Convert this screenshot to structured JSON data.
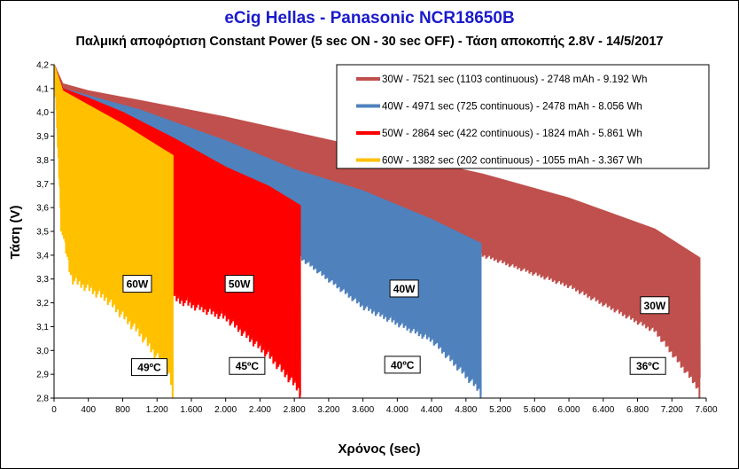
{
  "chart_data": {
    "type": "area",
    "title": "eCig Hellas  - Panasonic NCR18650B",
    "subtitle": "Παλμική αποφόρτιση Constant Power (5 sec ON - 30 sec OFF) - Τάση αποκοπής 2.8V - 14/5/2017",
    "xlabel": "Χρόνος (sec)",
    "ylabel": "Τάση (V)",
    "xlim": [
      0,
      7600
    ],
    "ylim": [
      2.8,
      4.2
    ],
    "x_ticks": [
      "0",
      "400",
      "800",
      "1.200",
      "1.600",
      "2.000",
      "2.400",
      "2.800",
      "3.200",
      "3.600",
      "4.000",
      "4.400",
      "4.800",
      "5.200",
      "5.600",
      "6.000",
      "6.400",
      "6.800",
      "7.200",
      "7.600"
    ],
    "y_ticks": [
      "2,8",
      "2,9",
      "3,0",
      "3,1",
      "3,2",
      "3,3",
      "3,4",
      "3,5",
      "3,6",
      "3,7",
      "3,8",
      "3,9",
      "4,0",
      "4,1",
      "4,2"
    ],
    "grid": false,
    "legend_position": "top-right",
    "series": [
      {
        "name": "30W - 7521 sec (1103 continuous) - 2748 mAh - 9.192 Wh",
        "color": "#c0504d",
        "end_x": 7521,
        "upper": [
          [
            0,
            4.2
          ],
          [
            100,
            4.12
          ],
          [
            400,
            4.09
          ],
          [
            1000,
            4.05
          ],
          [
            2000,
            3.98
          ],
          [
            3000,
            3.9
          ],
          [
            4000,
            3.82
          ],
          [
            5000,
            3.74
          ],
          [
            6000,
            3.64
          ],
          [
            7000,
            3.51
          ],
          [
            7521,
            3.39
          ]
        ],
        "lower": [
          [
            0,
            4.2
          ],
          [
            100,
            4.03
          ],
          [
            400,
            4.0
          ],
          [
            1000,
            3.93
          ],
          [
            2000,
            3.81
          ],
          [
            3000,
            3.67
          ],
          [
            4000,
            3.53
          ],
          [
            5000,
            3.39
          ],
          [
            6000,
            3.26
          ],
          [
            7000,
            3.07
          ],
          [
            7521,
            2.82
          ]
        ]
      },
      {
        "name": "40W - 4971 sec (725 continuous) - 2478 mAh - 8.056 Wh",
        "color": "#4f81bd",
        "end_x": 4971,
        "upper": [
          [
            0,
            4.2
          ],
          [
            100,
            4.1
          ],
          [
            400,
            4.07
          ],
          [
            1000,
            4.01
          ],
          [
            2000,
            3.88
          ],
          [
            2800,
            3.76
          ],
          [
            3600,
            3.67
          ],
          [
            4400,
            3.55
          ],
          [
            4971,
            3.45
          ]
        ],
        "lower": [
          [
            0,
            4.2
          ],
          [
            100,
            4.03
          ],
          [
            400,
            3.97
          ],
          [
            1000,
            3.86
          ],
          [
            2000,
            3.62
          ],
          [
            2800,
            3.4
          ],
          [
            3600,
            3.17
          ],
          [
            4400,
            3.03
          ],
          [
            4971,
            2.81
          ]
        ]
      },
      {
        "name": "50W - 2864 sec (422 continuous) - 1824 mAh - 5.861 Wh",
        "color": "#ff0000",
        "end_x": 2864,
        "upper": [
          [
            0,
            4.2
          ],
          [
            100,
            4.1
          ],
          [
            400,
            4.06
          ],
          [
            800,
            4.0
          ],
          [
            1400,
            3.89
          ],
          [
            2000,
            3.77
          ],
          [
            2500,
            3.69
          ],
          [
            2864,
            3.61
          ]
        ],
        "lower": [
          [
            0,
            4.2
          ],
          [
            100,
            3.95
          ],
          [
            400,
            3.85
          ],
          [
            800,
            3.68
          ],
          [
            1400,
            3.2
          ],
          [
            2000,
            3.12
          ],
          [
            2500,
            2.96
          ],
          [
            2864,
            2.81
          ]
        ]
      },
      {
        "name": "60W - 1382 sec (202 continuous) - 1055 mAh - 3.367 Wh",
        "color": "#ffc000",
        "end_x": 1382,
        "upper": [
          [
            0,
            4.2
          ],
          [
            100,
            4.09
          ],
          [
            400,
            4.03
          ],
          [
            800,
            3.95
          ],
          [
            1200,
            3.86
          ],
          [
            1382,
            3.82
          ]
        ],
        "lower": [
          [
            0,
            4.2
          ],
          [
            80,
            3.5
          ],
          [
            200,
            3.28
          ],
          [
            600,
            3.2
          ],
          [
            1000,
            3.05
          ],
          [
            1300,
            2.9
          ],
          [
            1382,
            2.82
          ]
        ]
      }
    ],
    "annotations": [
      {
        "text": "60W",
        "x": 970,
        "y": 3.28
      },
      {
        "text": "50W",
        "x": 2160,
        "y": 3.28
      },
      {
        "text": "40W",
        "x": 4080,
        "y": 3.26
      },
      {
        "text": "30W",
        "x": 7000,
        "y": 3.19
      },
      {
        "text": "49ºC",
        "x": 1110,
        "y": 2.93
      },
      {
        "text": "45ºC",
        "x": 2250,
        "y": 2.935
      },
      {
        "text": "40ºC",
        "x": 4060,
        "y": 2.94
      },
      {
        "text": "36ºC",
        "x": 6920,
        "y": 2.935
      }
    ]
  }
}
